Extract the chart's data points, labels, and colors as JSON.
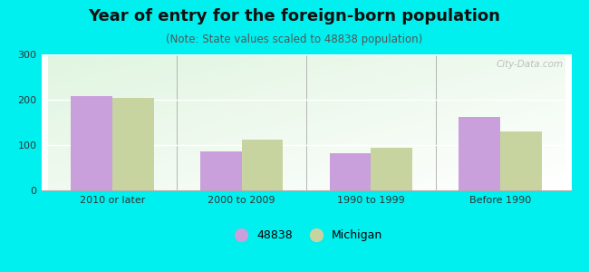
{
  "title": "Year of entry for the foreign-born population",
  "subtitle": "(Note: State values scaled to 48838 population)",
  "categories": [
    "2010 or later",
    "2000 to 2009",
    "1990 to 1999",
    "Before 1990"
  ],
  "values_48838": [
    208,
    87,
    83,
    163
  ],
  "values_michigan": [
    205,
    113,
    95,
    130
  ],
  "bar_color_48838": "#c9a0dc",
  "bar_color_michigan": "#c8d4a0",
  "background_color": "#00efef",
  "ylim": [
    0,
    300
  ],
  "yticks": [
    0,
    100,
    200,
    300
  ],
  "bar_width": 0.32,
  "legend_label_1": "48838",
  "legend_label_2": "Michigan",
  "watermark": "City-Data.com",
  "title_fontsize": 13,
  "subtitle_fontsize": 8.5,
  "tick_fontsize": 8,
  "legend_fontsize": 9
}
